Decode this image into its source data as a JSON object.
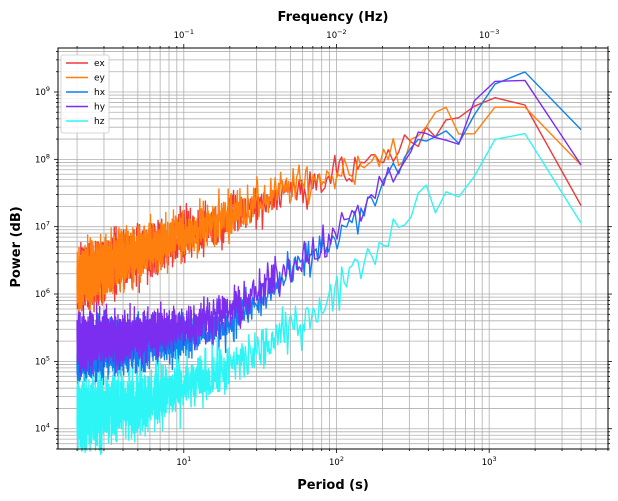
{
  "chart_data": {
    "type": "line",
    "xlabel": "Period (s)",
    "ylabel": "Power (dB)",
    "top_xlabel": "Frequency (Hz)",
    "xscale": "log",
    "yscale": "log",
    "xlim": [
      1.5,
      6000
    ],
    "ylim": [
      5000,
      4500000000
    ],
    "grid": true,
    "legend_position": "top-left",
    "bottom_ticks": [
      {
        "value": 10,
        "base": "10",
        "exp": "1"
      },
      {
        "value": 100,
        "base": "10",
        "exp": "2"
      },
      {
        "value": 1000,
        "base": "10",
        "exp": "3"
      }
    ],
    "top_ticks": [
      {
        "value": 10,
        "base": "10",
        "exp": "−1"
      },
      {
        "value": 100,
        "base": "10",
        "exp": "−2"
      },
      {
        "value": 1000,
        "base": "10",
        "exp": "−3"
      }
    ],
    "y_ticks": [
      {
        "value": 10000,
        "base": "10",
        "exp": "4"
      },
      {
        "value": 100000,
        "base": "10",
        "exp": "5"
      },
      {
        "value": 1000000,
        "base": "10",
        "exp": "6"
      },
      {
        "value": 10000000,
        "base": "10",
        "exp": "7"
      },
      {
        "value": 100000000,
        "base": "10",
        "exp": "8"
      },
      {
        "value": 1000000000,
        "base": "10",
        "exp": "9"
      }
    ],
    "series": [
      {
        "name": "ex",
        "color": "#f03838",
        "noise": 0.22,
        "x": [
          2,
          3,
          5,
          10,
          20,
          50,
          100,
          200,
          300,
          400,
          500,
          600,
          800,
          1000,
          1400,
          2000,
          2800,
          4000
        ],
        "y": [
          1500000,
          2400000,
          3700000,
          7000000,
          14000000,
          35000000,
          60000000,
          110000000,
          150000000,
          210000000,
          270000000,
          330000000,
          550000000,
          780000000,
          1000000000,
          450000000,
          100000000,
          20000000
        ]
      },
      {
        "name": "ey",
        "color": "#ff7f0e",
        "noise": 0.22,
        "x": [
          2,
          3,
          5,
          10,
          20,
          50,
          100,
          200,
          300,
          400,
          500,
          600,
          800,
          1000,
          1400,
          2000,
          2800,
          4000
        ],
        "y": [
          1700000,
          2600000,
          4000000,
          7500000,
          15000000,
          38000000,
          62000000,
          115000000,
          170000000,
          300000000,
          420000000,
          300000000,
          230000000,
          480000000,
          720000000,
          600000000,
          220000000,
          70000000
        ]
      },
      {
        "name": "hx",
        "color": "#0f7fee",
        "noise": 0.2,
        "x": [
          2,
          3,
          5,
          10,
          20,
          30,
          50,
          100,
          150,
          200,
          300,
          400,
          500,
          600,
          800,
          1000,
          1400,
          2000,
          2800,
          4000
        ],
        "y": [
          130000,
          150000,
          170000,
          230000,
          380000,
          700000,
          2000000,
          7000000,
          16000000,
          40000000,
          110000000,
          200000000,
          260000000,
          180000000,
          400000000,
          1100000000,
          2000000000,
          2100000000,
          850000000,
          240000000
        ]
      },
      {
        "name": "hy",
        "color": "#7b2df0",
        "noise": 0.2,
        "x": [
          2,
          3,
          5,
          10,
          20,
          30,
          50,
          100,
          150,
          200,
          300,
          400,
          500,
          600,
          800,
          1000,
          1400,
          2000,
          2800,
          4000
        ],
        "y": [
          190000,
          210000,
          240000,
          330000,
          550000,
          1000000,
          2600000,
          8000000,
          20000000,
          50000000,
          120000000,
          210000000,
          230000000,
          170000000,
          450000000,
          1400000000,
          2500000000,
          1400000000,
          450000000,
          75000000
        ]
      },
      {
        "name": "hz",
        "color": "#2ef5f5",
        "noise": 0.25,
        "x": [
          2,
          3,
          5,
          10,
          20,
          30,
          50,
          100,
          150,
          200,
          300,
          400,
          500,
          600,
          800,
          1000,
          1400,
          2000,
          2800,
          4000
        ],
        "y": [
          15000,
          19000,
          25000,
          40000,
          80000,
          140000,
          300000,
          1100000,
          3000000,
          6500000,
          15000000,
          30000000,
          33000000,
          40000000,
          75000000,
          150000000,
          220000000,
          160000000,
          50000000,
          10500000
        ]
      }
    ]
  }
}
